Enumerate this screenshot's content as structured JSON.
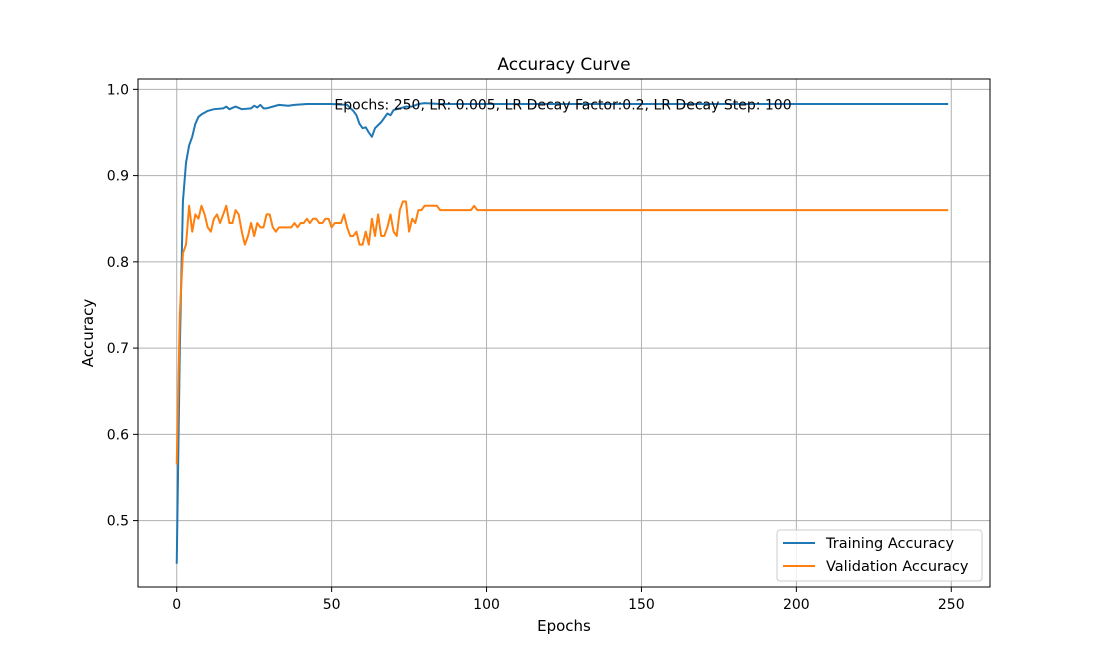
{
  "chart_data": {
    "type": "line",
    "title": "Accuracy Curve",
    "xlabel": "Epochs",
    "ylabel": "Accuracy",
    "xlim": [
      -12.5,
      262.5
    ],
    "ylim": [
      0.423,
      1.012
    ],
    "xticks": [
      0,
      50,
      100,
      150,
      200,
      250
    ],
    "yticks": [
      0.5,
      0.6,
      0.7,
      0.8,
      0.9,
      1.0
    ],
    "xtick_labels": [
      "0",
      "50",
      "100",
      "150",
      "200",
      "250"
    ],
    "ytick_labels": [
      "0.5",
      "0.6",
      "0.7",
      "0.8",
      "0.9",
      "1.0"
    ],
    "grid": true,
    "legend_position": "bottom-right",
    "annotation": "Epochs: 250, LR: 0.005, LR Decay Factor:0.2, LR Decay Step: 100",
    "series": [
      {
        "name": "Training Accuracy",
        "color": "#1f77b4",
        "points": [
          [
            0,
            0.45
          ],
          [
            1,
            0.7
          ],
          [
            2,
            0.87
          ],
          [
            3,
            0.915
          ],
          [
            4,
            0.935
          ],
          [
            5,
            0.945
          ],
          [
            6,
            0.96
          ],
          [
            7,
            0.968
          ],
          [
            8,
            0.971
          ],
          [
            10,
            0.975
          ],
          [
            12,
            0.977
          ],
          [
            15,
            0.978
          ],
          [
            16,
            0.98
          ],
          [
            17,
            0.977
          ],
          [
            19,
            0.98
          ],
          [
            21,
            0.977
          ],
          [
            24,
            0.978
          ],
          [
            25,
            0.981
          ],
          [
            26,
            0.979
          ],
          [
            27,
            0.982
          ],
          [
            28,
            0.978
          ],
          [
            29,
            0.978
          ],
          [
            31,
            0.98
          ],
          [
            33,
            0.982
          ],
          [
            36,
            0.981
          ],
          [
            38,
            0.982
          ],
          [
            42,
            0.983
          ],
          [
            50,
            0.983
          ],
          [
            55,
            0.982
          ],
          [
            57,
            0.975
          ],
          [
            58,
            0.97
          ],
          [
            59,
            0.96
          ],
          [
            60,
            0.955
          ],
          [
            61,
            0.956
          ],
          [
            62,
            0.95
          ],
          [
            63,
            0.945
          ],
          [
            64,
            0.955
          ],
          [
            66,
            0.962
          ],
          [
            68,
            0.972
          ],
          [
            69,
            0.97
          ],
          [
            70,
            0.976
          ],
          [
            72,
            0.978
          ],
          [
            74,
            0.98
          ],
          [
            76,
            0.98
          ],
          [
            78,
            0.983
          ],
          [
            80,
            0.984
          ],
          [
            85,
            0.983
          ],
          [
            90,
            0.983
          ],
          [
            100,
            0.983
          ],
          [
            150,
            0.983
          ],
          [
            200,
            0.983
          ],
          [
            249,
            0.983
          ]
        ]
      },
      {
        "name": "Validation Accuracy",
        "color": "#ff7f0e",
        "points": [
          [
            0,
            0.565
          ],
          [
            1,
            0.74
          ],
          [
            2,
            0.81
          ],
          [
            3,
            0.82
          ],
          [
            4,
            0.865
          ],
          [
            5,
            0.835
          ],
          [
            6,
            0.855
          ],
          [
            7,
            0.85
          ],
          [
            8,
            0.865
          ],
          [
            9,
            0.855
          ],
          [
            10,
            0.84
          ],
          [
            11,
            0.835
          ],
          [
            12,
            0.85
          ],
          [
            13,
            0.855
          ],
          [
            14,
            0.845
          ],
          [
            15,
            0.855
          ],
          [
            16,
            0.865
          ],
          [
            17,
            0.845
          ],
          [
            18,
            0.845
          ],
          [
            19,
            0.86
          ],
          [
            20,
            0.855
          ],
          [
            21,
            0.835
          ],
          [
            22,
            0.82
          ],
          [
            23,
            0.83
          ],
          [
            24,
            0.845
          ],
          [
            25,
            0.83
          ],
          [
            26,
            0.845
          ],
          [
            27,
            0.84
          ],
          [
            28,
            0.84
          ],
          [
            29,
            0.855
          ],
          [
            30,
            0.855
          ],
          [
            31,
            0.84
          ],
          [
            32,
            0.835
          ],
          [
            33,
            0.84
          ],
          [
            37,
            0.84
          ],
          [
            38,
            0.845
          ],
          [
            39,
            0.84
          ],
          [
            40,
            0.845
          ],
          [
            41,
            0.845
          ],
          [
            42,
            0.85
          ],
          [
            43,
            0.845
          ],
          [
            44,
            0.85
          ],
          [
            45,
            0.85
          ],
          [
            46,
            0.845
          ],
          [
            47,
            0.845
          ],
          [
            48,
            0.85
          ],
          [
            49,
            0.85
          ],
          [
            50,
            0.84
          ],
          [
            51,
            0.845
          ],
          [
            53,
            0.845
          ],
          [
            54,
            0.855
          ],
          [
            55,
            0.84
          ],
          [
            56,
            0.83
          ],
          [
            57,
            0.83
          ],
          [
            58,
            0.835
          ],
          [
            59,
            0.82
          ],
          [
            60,
            0.82
          ],
          [
            61,
            0.835
          ],
          [
            62,
            0.82
          ],
          [
            63,
            0.85
          ],
          [
            64,
            0.83
          ],
          [
            65,
            0.855
          ],
          [
            66,
            0.83
          ],
          [
            67,
            0.83
          ],
          [
            68,
            0.84
          ],
          [
            69,
            0.855
          ],
          [
            70,
            0.835
          ],
          [
            71,
            0.83
          ],
          [
            72,
            0.86
          ],
          [
            73,
            0.87
          ],
          [
            74,
            0.87
          ],
          [
            75,
            0.835
          ],
          [
            76,
            0.85
          ],
          [
            77,
            0.845
          ],
          [
            78,
            0.86
          ],
          [
            79,
            0.86
          ],
          [
            80,
            0.865
          ],
          [
            84,
            0.865
          ],
          [
            85,
            0.86
          ],
          [
            95,
            0.86
          ],
          [
            96,
            0.865
          ],
          [
            97,
            0.86
          ],
          [
            100,
            0.86
          ],
          [
            150,
            0.86
          ],
          [
            200,
            0.86
          ],
          [
            249,
            0.86
          ]
        ]
      }
    ]
  }
}
